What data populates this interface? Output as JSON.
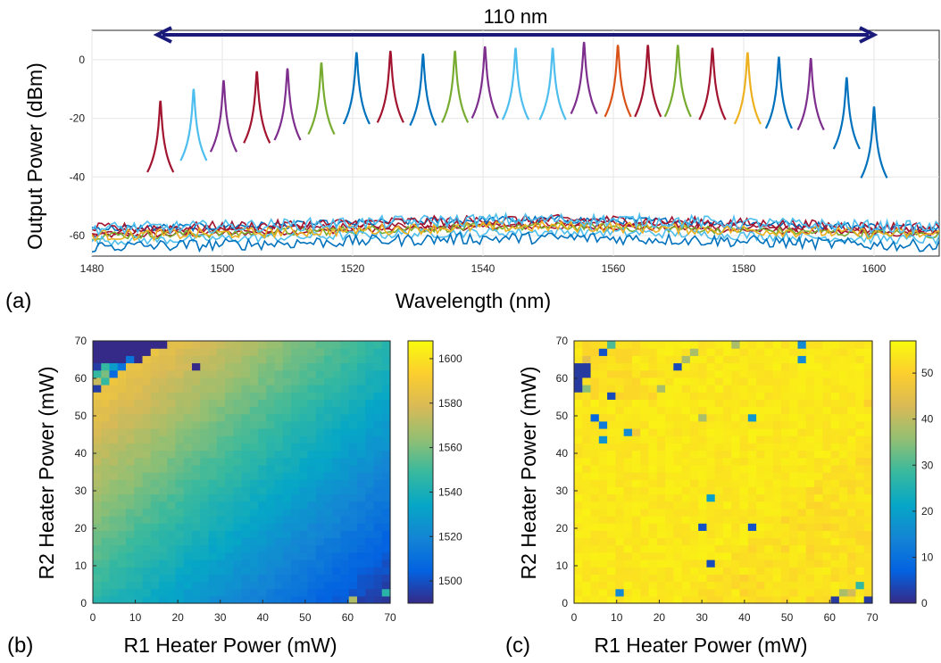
{
  "panels": {
    "a_label": "(a)",
    "b_label": "(b)",
    "c_label": "(c)"
  },
  "colors": {
    "arrow": "#1a1a7a",
    "spectrum_cycle": [
      "#a2142f",
      "#4dbeee",
      "#7e2f8e",
      "#a2142f",
      "#7e2f8e",
      "#77ac30",
      "#0072bd",
      "#a2142f",
      "#0072bd",
      "#77ac30",
      "#7e2f8e",
      "#4dbeee",
      "#4dbeee",
      "#7e2f8e",
      "#d95319",
      "#a2142f",
      "#77ac30",
      "#a2142f",
      "#edb120",
      "#0072bd",
      "#7e2f8e",
      "#0072bd",
      "#0072bd"
    ],
    "parula": [
      "#352a87",
      "#0363e1",
      "#1485d4",
      "#06a7c6",
      "#38b99e",
      "#92bf73",
      "#d9ba56",
      "#fcce2e",
      "#f9fb0e"
    ]
  },
  "chart_data": [
    {
      "type": "line",
      "title": "",
      "xlabel": "Wavelength (nm)",
      "ylabel": "Output Power (dBm)",
      "xlim": [
        1480,
        1610
      ],
      "ylim": [
        -67,
        10
      ],
      "xticks": [
        1480,
        1500,
        1520,
        1540,
        1560,
        1580,
        1600
      ],
      "yticks": [
        -60,
        -40,
        -20,
        0
      ],
      "grid": true,
      "annotation": {
        "text": "110 nm",
        "from": 1490,
        "to": 1600
      },
      "noise_floor_dBm": -57,
      "series": [
        {
          "peak_nm": 1490.5,
          "peak_dBm": -14
        },
        {
          "peak_nm": 1495.6,
          "peak_dBm": -10
        },
        {
          "peak_nm": 1500.2,
          "peak_dBm": -7
        },
        {
          "peak_nm": 1505.3,
          "peak_dBm": -4
        },
        {
          "peak_nm": 1510.0,
          "peak_dBm": -3
        },
        {
          "peak_nm": 1515.2,
          "peak_dBm": -1
        },
        {
          "peak_nm": 1520.6,
          "peak_dBm": 2.5
        },
        {
          "peak_nm": 1525.8,
          "peak_dBm": 3
        },
        {
          "peak_nm": 1530.8,
          "peak_dBm": 2
        },
        {
          "peak_nm": 1535.7,
          "peak_dBm": 3
        },
        {
          "peak_nm": 1540.3,
          "peak_dBm": 4.5
        },
        {
          "peak_nm": 1545.0,
          "peak_dBm": 4
        },
        {
          "peak_nm": 1550.7,
          "peak_dBm": 4
        },
        {
          "peak_nm": 1555.5,
          "peak_dBm": 6
        },
        {
          "peak_nm": 1560.7,
          "peak_dBm": 5
        },
        {
          "peak_nm": 1565.3,
          "peak_dBm": 5
        },
        {
          "peak_nm": 1569.9,
          "peak_dBm": 5
        },
        {
          "peak_nm": 1575.2,
          "peak_dBm": 4
        },
        {
          "peak_nm": 1580.6,
          "peak_dBm": 2.5
        },
        {
          "peak_nm": 1585.4,
          "peak_dBm": 1
        },
        {
          "peak_nm": 1590.3,
          "peak_dBm": 0.5
        },
        {
          "peak_nm": 1595.8,
          "peak_dBm": -6
        },
        {
          "peak_nm": 1600.0,
          "peak_dBm": -16
        }
      ]
    },
    {
      "type": "heatmap",
      "title": "",
      "xlabel": "R1 Heater Power (mW)",
      "ylabel": "R2 Heater Power (mW)",
      "xlim": [
        0,
        70
      ],
      "ylim": [
        0,
        70
      ],
      "xticks": [
        0,
        10,
        20,
        30,
        40,
        50,
        60,
        70
      ],
      "yticks": [
        0,
        10,
        20,
        30,
        40,
        50,
        60,
        70
      ],
      "colorbar": {
        "min": 1490,
        "max": 1608,
        "ticks": [
          1500,
          1520,
          1540,
          1560,
          1580,
          1600
        ]
      },
      "grid_n": 36,
      "model": {
        "corner_top_left": 1600,
        "corner_bottom_right": 1493,
        "base": 1545,
        "per_mW_r2": 0.75,
        "per_mW_r1": -0.75
      },
      "outliers": [
        {
          "x": 1,
          "y": 69,
          "v": 1490
        },
        {
          "x": 3,
          "y": 69,
          "v": 1490
        },
        {
          "x": 5,
          "y": 69,
          "v": 1490
        },
        {
          "x": 7,
          "y": 69,
          "v": 1490
        },
        {
          "x": 9,
          "y": 69,
          "v": 1490
        },
        {
          "x": 11,
          "y": 69,
          "v": 1490
        },
        {
          "x": 13,
          "y": 69,
          "v": 1490
        },
        {
          "x": 15,
          "y": 69,
          "v": 1490
        },
        {
          "x": 17,
          "y": 69,
          "v": 1490
        },
        {
          "x": 1,
          "y": 67,
          "v": 1490
        },
        {
          "x": 3,
          "y": 67,
          "v": 1490
        },
        {
          "x": 5,
          "y": 67,
          "v": 1490
        },
        {
          "x": 7,
          "y": 67,
          "v": 1490
        },
        {
          "x": 9,
          "y": 67,
          "v": 1490
        },
        {
          "x": 11,
          "y": 67,
          "v": 1490
        },
        {
          "x": 13,
          "y": 67,
          "v": 1490
        },
        {
          "x": 1,
          "y": 65,
          "v": 1490
        },
        {
          "x": 3,
          "y": 65,
          "v": 1490
        },
        {
          "x": 5,
          "y": 65,
          "v": 1490
        },
        {
          "x": 7,
          "y": 65,
          "v": 1490
        },
        {
          "x": 9,
          "y": 65,
          "v": 1512
        },
        {
          "x": 11,
          "y": 65,
          "v": 1490
        },
        {
          "x": 1,
          "y": 63,
          "v": 1495
        },
        {
          "x": 3,
          "y": 63,
          "v": 1548
        },
        {
          "x": 5,
          "y": 63,
          "v": 1530
        },
        {
          "x": 7,
          "y": 63,
          "v": 1512
        },
        {
          "x": 1,
          "y": 61,
          "v": 1548
        },
        {
          "x": 3,
          "y": 61,
          "v": 1560
        },
        {
          "x": 5,
          "y": 61,
          "v": 1508
        },
        {
          "x": 1,
          "y": 59,
          "v": 1575
        },
        {
          "x": 3,
          "y": 59,
          "v": 1548
        },
        {
          "x": 1,
          "y": 57,
          "v": 1495
        },
        {
          "x": 25,
          "y": 63,
          "v": 1490
        },
        {
          "x": 61,
          "y": 1,
          "v": 1570
        },
        {
          "x": 63,
          "y": 1,
          "v": 1495
        },
        {
          "x": 69,
          "y": 3,
          "v": 1545
        }
      ]
    },
    {
      "type": "heatmap",
      "title": "",
      "xlabel": "R1 Heater Power (mW)",
      "ylabel": "R2 Heater Power (mW)",
      "xlim": [
        0,
        70
      ],
      "ylim": [
        0,
        70
      ],
      "xticks": [
        0,
        10,
        20,
        30,
        40,
        50,
        60,
        70
      ],
      "yticks": [
        0,
        10,
        20,
        30,
        40,
        50,
        60,
        70
      ],
      "colorbar": {
        "min": 0,
        "max": 57,
        "ticks": [
          0,
          10,
          20,
          30,
          40,
          50
        ]
      },
      "grid_n": 36,
      "model": {
        "base": 54
      },
      "outliers": [
        {
          "x": 1,
          "y": 63,
          "v": 2
        },
        {
          "x": 3,
          "y": 63,
          "v": 2
        },
        {
          "x": 1,
          "y": 61,
          "v": 2
        },
        {
          "x": 3,
          "y": 61,
          "v": 2
        },
        {
          "x": 1,
          "y": 59,
          "v": 2
        },
        {
          "x": 1,
          "y": 57,
          "v": 2
        },
        {
          "x": 3,
          "y": 57,
          "v": 35
        },
        {
          "x": 3,
          "y": 65,
          "v": 45
        },
        {
          "x": 9,
          "y": 69,
          "v": 30
        },
        {
          "x": 7,
          "y": 67,
          "v": 5
        },
        {
          "x": 9,
          "y": 55,
          "v": 4
        },
        {
          "x": 5,
          "y": 49,
          "v": 8
        },
        {
          "x": 7,
          "y": 47,
          "v": 12
        },
        {
          "x": 7,
          "y": 43,
          "v": 17
        },
        {
          "x": 13,
          "y": 45,
          "v": 15
        },
        {
          "x": 15,
          "y": 45,
          "v": 48
        },
        {
          "x": 25,
          "y": 63,
          "v": 4
        },
        {
          "x": 27,
          "y": 65,
          "v": 38
        },
        {
          "x": 21,
          "y": 57,
          "v": 38
        },
        {
          "x": 29,
          "y": 67,
          "v": 38
        },
        {
          "x": 37,
          "y": 69,
          "v": 38
        },
        {
          "x": 53,
          "y": 69,
          "v": 15
        },
        {
          "x": 53,
          "y": 65,
          "v": 15
        },
        {
          "x": 31,
          "y": 49,
          "v": 38
        },
        {
          "x": 41,
          "y": 49,
          "v": 18
        },
        {
          "x": 33,
          "y": 29,
          "v": 20
        },
        {
          "x": 31,
          "y": 21,
          "v": 5
        },
        {
          "x": 41,
          "y": 21,
          "v": 5
        },
        {
          "x": 33,
          "y": 11,
          "v": 4
        },
        {
          "x": 11,
          "y": 3,
          "v": 15
        },
        {
          "x": 61,
          "y": 1,
          "v": 2
        },
        {
          "x": 63,
          "y": 3,
          "v": 38
        },
        {
          "x": 65,
          "y": 3,
          "v": 42
        },
        {
          "x": 67,
          "y": 5,
          "v": 28
        },
        {
          "x": 69,
          "y": 1,
          "v": 2
        },
        {
          "x": 69,
          "y": 53,
          "v": 50
        }
      ]
    }
  ]
}
